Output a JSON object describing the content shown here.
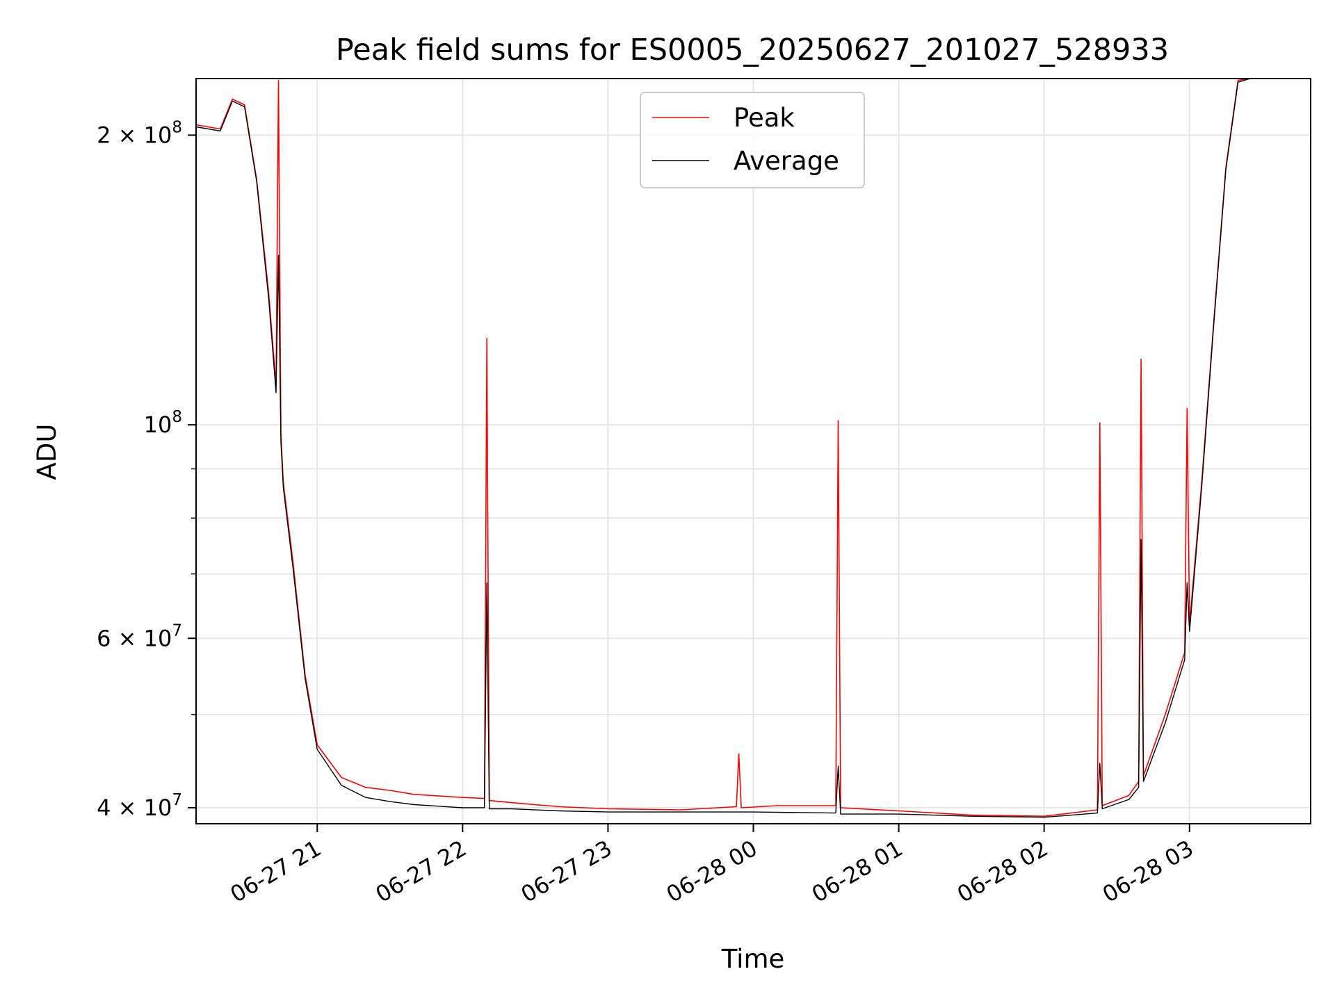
{
  "chart_data": {
    "type": "line",
    "title": "Peak field sums for ES0005_20250627_201027_528933",
    "xlabel": "Time",
    "ylabel": "ADU",
    "yscale": "log",
    "ylim": [
      38500000,
      229000000
    ],
    "xlim": [
      "06-27 20:10",
      "06-28 03:50"
    ],
    "x_ticks": [
      "06-27 21",
      "06-27 22",
      "06-27 23",
      "06-28 00",
      "06-28 01",
      "06-28 02",
      "06-28 03"
    ],
    "y_ticks": [
      {
        "value": 40000000,
        "label": "4 × 10^7",
        "mant": "4 × 10",
        "exp": "7"
      },
      {
        "value": 60000000,
        "label": "6 × 10^7",
        "mant": "6 × 10",
        "exp": "7"
      },
      {
        "value": 100000000,
        "label": "10^8",
        "mant": "10",
        "exp": "8"
      },
      {
        "value": 200000000,
        "label": "2 × 10^8",
        "mant": "2 × 10",
        "exp": "8"
      }
    ],
    "y_minor_ticks": [
      50000000,
      70000000,
      80000000,
      90000000
    ],
    "grid": true,
    "legend_position": "top-center",
    "series": [
      {
        "name": "Peak",
        "color": "#ff0000",
        "x": [
          "06-27 20:10",
          "06-27 20:20",
          "06-27 20:25",
          "06-27 20:30",
          "06-27 20:35",
          "06-27 20:40",
          "06-27 20:43",
          "06-27 20:44",
          "06-27 20:45",
          "06-27 20:46",
          "06-27 20:50",
          "06-27 20:55",
          "06-27 21:00",
          "06-27 21:10",
          "06-27 21:20",
          "06-27 21:30",
          "06-27 21:40",
          "06-27 22:00",
          "06-27 22:09",
          "06-27 22:10",
          "06-27 22:11",
          "06-27 22:20",
          "06-27 22:40",
          "06-27 23:00",
          "06-27 23:30",
          "06-27 23:53",
          "06-27 23:54",
          "06-27 23:55",
          "06-28 00:10",
          "06-28 00:34",
          "06-28 00:35",
          "06-28 00:36",
          "06-28 01:00",
          "06-28 01:30",
          "06-28 02:00",
          "06-28 02:22",
          "06-28 02:23",
          "06-28 02:24",
          "06-28 02:35",
          "06-28 02:39",
          "06-28 02:40",
          "06-28 02:41",
          "06-28 02:50",
          "06-28 02:58",
          "06-28 02:59",
          "06-28 03:00",
          "06-28 03:05",
          "06-28 03:10",
          "06-28 03:15",
          "06-28 03:20",
          "06-28 03:25",
          "06-28 03:30",
          "06-28 03:35",
          "06-28 03:40",
          "06-28 03:50"
        ],
        "values": [
          205000000,
          203000000,
          218000000,
          215000000,
          180000000,
          137000000,
          110000000,
          228000000,
          98000000,
          87000000,
          72000000,
          55000000,
          46500000,
          43000000,
          42000000,
          41700000,
          41300000,
          41000000,
          40900000,
          123000000,
          40700000,
          40500000,
          40100000,
          39900000,
          39800000,
          40100000,
          45500000,
          40000000,
          40200000,
          40200000,
          101000000,
          40000000,
          39700000,
          39300000,
          39200000,
          39800000,
          100500000,
          40200000,
          41200000,
          42600000,
          117000000,
          43200000,
          50000000,
          58000000,
          104000000,
          62000000,
          87000000,
          128000000,
          185000000,
          228000000,
          229000000,
          229000000,
          229000000,
          229000000,
          229000000
        ]
      },
      {
        "name": "Average",
        "color": "#000000",
        "x": [
          "06-27 20:10",
          "06-27 20:20",
          "06-27 20:25",
          "06-27 20:30",
          "06-27 20:35",
          "06-27 20:40",
          "06-27 20:43",
          "06-27 20:44",
          "06-27 20:45",
          "06-27 20:46",
          "06-27 20:50",
          "06-27 20:55",
          "06-27 21:00",
          "06-27 21:10",
          "06-27 21:20",
          "06-27 21:30",
          "06-27 21:40",
          "06-27 22:00",
          "06-27 22:09",
          "06-27 22:10",
          "06-27 22:11",
          "06-27 22:20",
          "06-27 22:40",
          "06-27 23:00",
          "06-27 23:30",
          "06-28 00:00",
          "06-28 00:34",
          "06-28 00:35",
          "06-28 00:36",
          "06-28 01:00",
          "06-28 01:30",
          "06-28 02:00",
          "06-28 02:22",
          "06-28 02:23",
          "06-28 02:24",
          "06-28 02:35",
          "06-28 02:39",
          "06-28 02:40",
          "06-28 02:41",
          "06-28 02:50",
          "06-28 02:58",
          "06-28 02:59",
          "06-28 03:00",
          "06-28 03:05",
          "06-28 03:10",
          "06-28 03:15",
          "06-28 03:20",
          "06-28 03:25",
          "06-28 03:30",
          "06-28 03:35",
          "06-28 03:40",
          "06-28 03:50"
        ],
        "values": [
          204000000,
          202000000,
          217000000,
          214000000,
          179000000,
          135000000,
          108000000,
          150000000,
          96000000,
          86000000,
          71000000,
          54500000,
          46000000,
          42200000,
          41000000,
          40600000,
          40300000,
          40000000,
          40000000,
          68500000,
          39900000,
          39900000,
          39700000,
          39600000,
          39600000,
          39600000,
          39500000,
          44200000,
          39400000,
          39400000,
          39200000,
          39100000,
          39500000,
          44500000,
          39900000,
          40800000,
          42000000,
          76000000,
          42600000,
          49000000,
          57000000,
          68500000,
          61000000,
          86000000,
          127000000,
          184000000,
          227000000,
          229000000,
          229000000,
          229000000,
          229000000,
          229000000
        ]
      }
    ]
  }
}
